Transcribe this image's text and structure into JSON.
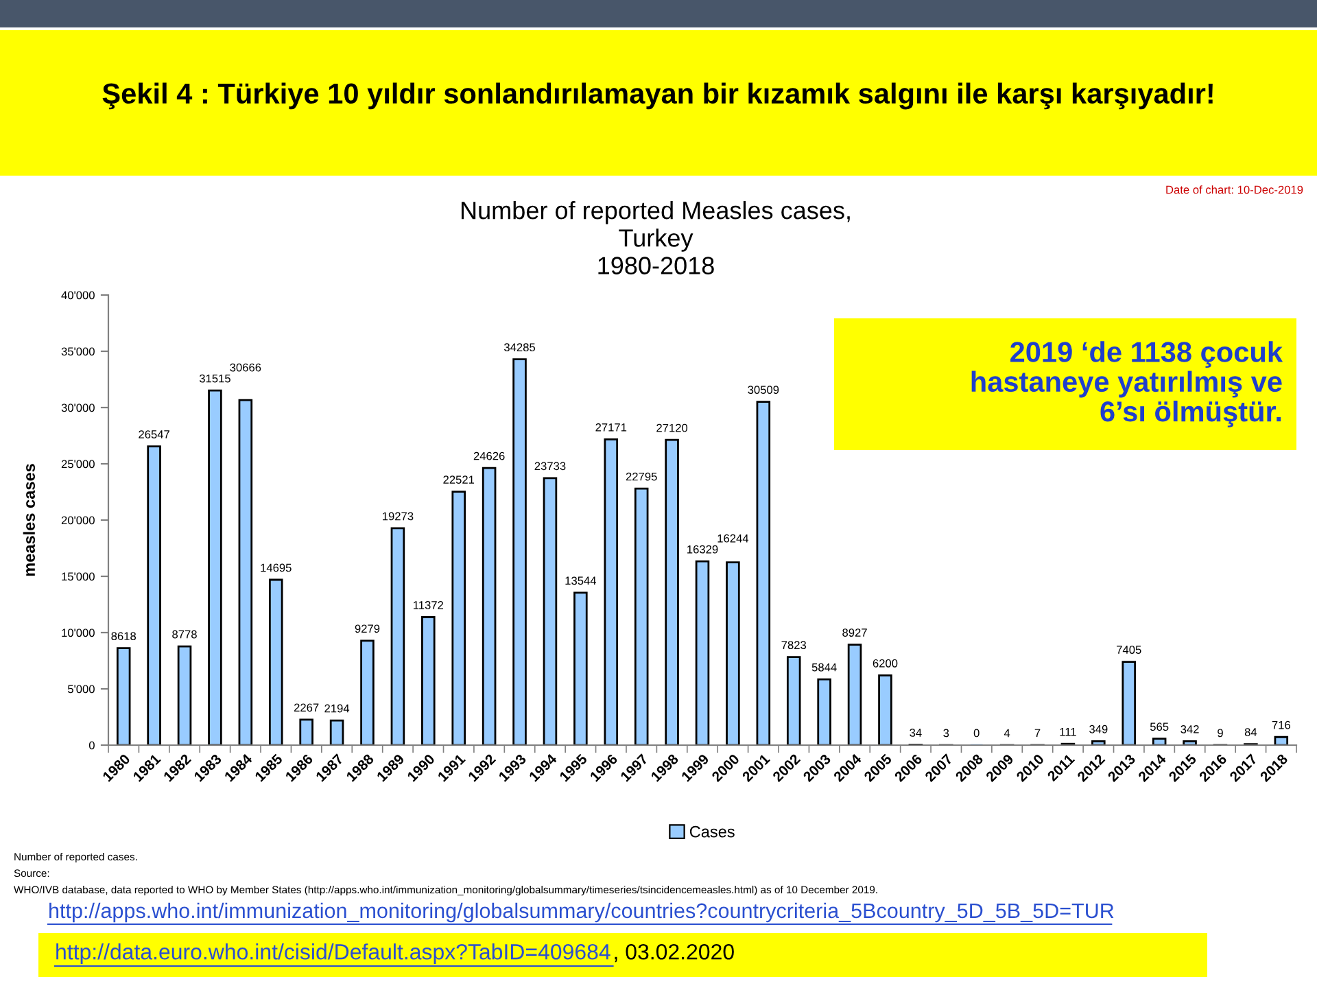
{
  "chart_data": {
    "type": "bar",
    "title": "Şekil 4 : Türkiye 10 yıldır sonlandırılamayan bir kızamık salgını ile karşı karşıyadır!",
    "subtitle": "Number of reported Measles cases,\nTurkey\n1980-2018",
    "ylabel": "measles cases",
    "categories": [
      "1980",
      "1981",
      "1982",
      "1983",
      "1984",
      "1985",
      "1986",
      "1987",
      "1988",
      "1989",
      "1990",
      "1991",
      "1992",
      "1993",
      "1994",
      "1995",
      "1996",
      "1997",
      "1998",
      "1999",
      "2000",
      "2001",
      "2002",
      "2003",
      "2004",
      "2005",
      "2006",
      "2007",
      "2008",
      "2009",
      "2010",
      "2011",
      "2012",
      "2013",
      "2014",
      "2015",
      "2016",
      "2017",
      "2018"
    ],
    "series": [
      {
        "name": "Cases",
        "color": "#99ccff",
        "values": [
          8618,
          26547,
          8778,
          31515,
          30666,
          14695,
          2267,
          2194,
          9279,
          19273,
          11372,
          22521,
          24626,
          34285,
          23733,
          13544,
          27171,
          22795,
          27120,
          16329,
          16244,
          30509,
          7823,
          5844,
          8927,
          6200,
          34,
          3,
          0,
          4,
          7,
          111,
          349,
          7405,
          565,
          342,
          9,
          84,
          716
        ]
      }
    ],
    "ylim": [
      0,
      40000
    ],
    "yticks": [
      0,
      {
        "value": 5000,
        "label": "5'000"
      },
      {
        "value": 10000,
        "label": "10'000"
      },
      {
        "value": 15000,
        "label": "15'000"
      },
      {
        "value": 20000,
        "label": "20'000"
      },
      {
        "value": 25000,
        "label": "25'000"
      },
      {
        "value": 30000,
        "label": "30'000"
      },
      {
        "value": 35000,
        "label": "35'000"
      },
      {
        "value": 40000,
        "label": "40'000"
      }
    ],
    "data_labels": true,
    "legend": "bottom",
    "annotations": [
      "Date of chart: 10-Dec-2019",
      "2019 ‘de 1138 çocuk\nhastaneye yatırılmış ve\n6’sı ölmüştür.",
      "Number of reported cases.",
      "Source:",
      "WHO/IVB database, data reported to WHO by Member States (http://apps.who.int/immunization_monitoring/globalsummary/timeseries/tsincidencemeasles.html) as of 10 December 2019.",
      "http://apps.who.int/immunization_monitoring/globalsummary/countries?countrycriteria_5Bcountry_5D_5B_5D=TUR",
      "http://data.euro.who.int/cisid/Default.aspx?TabID=409684",
      ", 03.02.2020"
    ]
  }
}
